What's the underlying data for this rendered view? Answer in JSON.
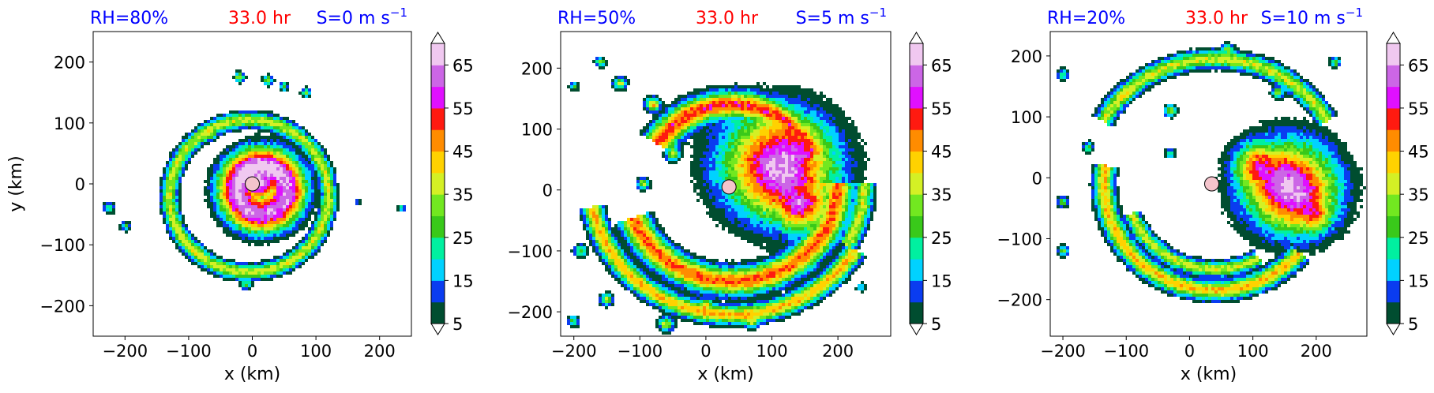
{
  "figure": {
    "panels": [
      {
        "labels": {
          "rh": "RH=80%",
          "time": "33.0 hr",
          "shear": "S=0 m s",
          "shear_sup": "−1"
        }
      },
      {
        "labels": {
          "rh": "RH=50%",
          "time": "33.0 hr",
          "shear": "S=5 m s",
          "shear_sup": "−1"
        }
      },
      {
        "labels": {
          "rh": "RH=20%",
          "time": "33.0 hr",
          "shear": "S=10 m s",
          "shear_sup": "−1"
        }
      }
    ],
    "colors": {
      "rh_label": "#0000ff",
      "time_label": "#ff0000",
      "shear_label": "#0000ff",
      "center_marker": "#f4c4cc"
    }
  },
  "chart_data": [
    {
      "type": "heatmap",
      "title": "RH=80%  33.0 hr  S=0 m s−1",
      "xlabel": "x (km)",
      "ylabel": "y (km)",
      "xlim": [
        -250,
        250
      ],
      "ylim": [
        -250,
        250
      ],
      "xticks": [
        -200,
        -100,
        0,
        100,
        200
      ],
      "yticks": [
        -200,
        -100,
        0,
        100,
        200
      ],
      "xtick_labels": [
        "−200",
        "−100",
        "0",
        "100",
        "200"
      ],
      "ytick_labels": [
        "−200",
        "−100",
        "0",
        "100",
        "200"
      ],
      "center": [
        0,
        0
      ],
      "features": [
        {
          "kind": "ring",
          "cx": 15,
          "cy": -10,
          "r": 90,
          "peak": 50
        },
        {
          "kind": "core",
          "cx": 10,
          "cy": 5,
          "r": 45,
          "peak": 55
        },
        {
          "kind": "band",
          "cx": -5,
          "cy": -20,
          "r": 125,
          "a0": 0,
          "a1": 360,
          "width": 12,
          "peak": 30
        },
        {
          "kind": "cell",
          "cx": -65,
          "cy": 80,
          "r": 9,
          "peak": 28
        },
        {
          "kind": "cell",
          "cx": -20,
          "cy": 175,
          "r": 8,
          "peak": 30
        },
        {
          "kind": "cell",
          "cx": 25,
          "cy": 170,
          "r": 8,
          "peak": 28
        },
        {
          "kind": "cell",
          "cx": 50,
          "cy": 160,
          "r": 7,
          "peak": 25
        },
        {
          "kind": "cell",
          "cx": 85,
          "cy": 150,
          "r": 8,
          "peak": 25
        },
        {
          "kind": "cell",
          "cx": -225,
          "cy": -40,
          "r": 9,
          "peak": 22
        },
        {
          "kind": "cell",
          "cx": -200,
          "cy": -70,
          "r": 8,
          "peak": 20
        },
        {
          "kind": "cell",
          "cx": 165,
          "cy": -30,
          "r": 5,
          "peak": 15
        },
        {
          "kind": "cell",
          "cx": 235,
          "cy": -40,
          "r": 6,
          "peak": 20
        },
        {
          "kind": "cell",
          "cx": -85,
          "cy": -105,
          "r": 8,
          "peak": 22
        },
        {
          "kind": "cell",
          "cx": -10,
          "cy": -165,
          "r": 9,
          "peak": 25
        }
      ]
    },
    {
      "type": "heatmap",
      "title": "RH=50%  33.0 hr  S=5 m s−1",
      "xlabel": "x (km)",
      "ylabel": "",
      "xlim": [
        -220,
        280
      ],
      "ylim": [
        -240,
        260
      ],
      "xticks": [
        -200,
        -100,
        0,
        100,
        200
      ],
      "yticks": [
        -200,
        -100,
        0,
        100,
        200
      ],
      "xtick_labels": [
        "−200",
        "−100",
        "0",
        "100",
        "200"
      ],
      "ytick_labels": [
        "−200",
        "−100",
        "0",
        "100",
        "200"
      ],
      "center": [
        35,
        5
      ],
      "features": [
        {
          "kind": "core",
          "cx": 110,
          "cy": 40,
          "r": 105,
          "peak": 52
        },
        {
          "kind": "core",
          "cx": 140,
          "cy": -20,
          "r": 60,
          "peak": 50
        },
        {
          "kind": "band",
          "cx": 40,
          "cy": 10,
          "r": 160,
          "a0": 200,
          "a1": 360,
          "width": 22,
          "peak": 40
        },
        {
          "kind": "band",
          "cx": 40,
          "cy": 10,
          "r": 130,
          "a0": 20,
          "a1": 150,
          "width": 22,
          "peak": 42
        },
        {
          "kind": "band",
          "cx": 40,
          "cy": 10,
          "r": 215,
          "a0": 190,
          "a1": 330,
          "width": 15,
          "peak": 35
        },
        {
          "kind": "band",
          "cx": 40,
          "cy": 10,
          "r": 200,
          "a0": 330,
          "a1": 360,
          "width": 14,
          "peak": 30
        },
        {
          "kind": "cell",
          "cx": -80,
          "cy": 140,
          "r": 12,
          "peak": 35
        },
        {
          "kind": "cell",
          "cx": -50,
          "cy": 60,
          "r": 12,
          "peak": 30
        },
        {
          "kind": "cell",
          "cx": -95,
          "cy": 10,
          "r": 10,
          "peak": 28
        },
        {
          "kind": "cell",
          "cx": -130,
          "cy": 175,
          "r": 10,
          "peak": 30
        },
        {
          "kind": "cell",
          "cx": -160,
          "cy": 210,
          "r": 8,
          "peak": 25
        },
        {
          "kind": "cell",
          "cx": -200,
          "cy": 170,
          "r": 7,
          "peak": 20
        },
        {
          "kind": "cell",
          "cx": -190,
          "cy": -100,
          "r": 10,
          "peak": 25
        },
        {
          "kind": "cell",
          "cx": -150,
          "cy": -180,
          "r": 10,
          "peak": 28
        },
        {
          "kind": "cell",
          "cx": -60,
          "cy": -220,
          "r": 12,
          "peak": 30
        },
        {
          "kind": "cell",
          "cx": 0,
          "cy": -190,
          "r": 12,
          "peak": 35
        },
        {
          "kind": "cell",
          "cx": 70,
          "cy": -215,
          "r": 12,
          "peak": 32
        },
        {
          "kind": "cell",
          "cx": -200,
          "cy": -215,
          "r": 9,
          "peak": 22
        },
        {
          "kind": "cell",
          "cx": 235,
          "cy": -160,
          "r": 7,
          "peak": 18
        }
      ]
    },
    {
      "type": "heatmap",
      "title": "RH=20%  33.0 hr  S=10 m s−1",
      "xlabel": "x (km)",
      "ylabel": "",
      "xlim": [
        -220,
        280
      ],
      "ylim": [
        -260,
        240
      ],
      "xticks": [
        -200,
        -100,
        0,
        100,
        200
      ],
      "yticks": [
        -200,
        -100,
        0,
        100,
        200
      ],
      "xtick_labels": [
        "−200",
        "−100",
        "0",
        "100",
        "200"
      ],
      "ytick_labels": [
        "−200",
        "−100",
        "0",
        "100",
        "200"
      ],
      "center": [
        35,
        -10
      ],
      "features": [
        {
          "kind": "core",
          "cx": 160,
          "cy": -15,
          "r": 90,
          "peak": 50
        },
        {
          "kind": "core",
          "cx": 115,
          "cy": 15,
          "r": 55,
          "peak": 48
        },
        {
          "kind": "core",
          "cx": 190,
          "cy": -55,
          "r": 50,
          "peak": 45
        },
        {
          "kind": "band",
          "cx": 40,
          "cy": -10,
          "r": 175,
          "a0": 170,
          "a1": 320,
          "width": 15,
          "peak": 35
        },
        {
          "kind": "band",
          "cx": 40,
          "cy": -10,
          "r": 140,
          "a0": 200,
          "a1": 300,
          "width": 12,
          "peak": 30
        },
        {
          "kind": "band",
          "cx": 40,
          "cy": -10,
          "r": 205,
          "a0": 30,
          "a1": 150,
          "width": 14,
          "peak": 30
        },
        {
          "kind": "cell",
          "cx": -100,
          "cy": 140,
          "r": 10,
          "peak": 25
        },
        {
          "kind": "cell",
          "cx": -30,
          "cy": 110,
          "r": 10,
          "peak": 28
        },
        {
          "kind": "cell",
          "cx": -160,
          "cy": 50,
          "r": 9,
          "peak": 22
        },
        {
          "kind": "cell",
          "cx": -200,
          "cy": 170,
          "r": 9,
          "peak": 22
        },
        {
          "kind": "cell",
          "cx": -30,
          "cy": 40,
          "r": 8,
          "peak": 20
        },
        {
          "kind": "cell",
          "cx": -200,
          "cy": -40,
          "r": 9,
          "peak": 22
        },
        {
          "kind": "cell",
          "cx": -200,
          "cy": -120,
          "r": 9,
          "peak": 25
        },
        {
          "kind": "cell",
          "cx": 60,
          "cy": 210,
          "r": 10,
          "peak": 28
        },
        {
          "kind": "cell",
          "cx": 140,
          "cy": 140,
          "r": 10,
          "peak": 28
        },
        {
          "kind": "cell",
          "cx": 230,
          "cy": 190,
          "r": 8,
          "peak": 25
        }
      ]
    }
  ],
  "colorbar": {
    "levels": [
      5,
      10,
      15,
      20,
      25,
      30,
      35,
      40,
      45,
      50,
      55,
      60,
      65,
      70
    ],
    "tick_labels": [
      "5",
      "15",
      "25",
      "35",
      "45",
      "55",
      "65"
    ],
    "extend": "both",
    "colors": [
      "#004d30",
      "#0a3cf0",
      "#00d2ff",
      "#00f0a0",
      "#39c91a",
      "#72e820",
      "#d4f025",
      "#ffd200",
      "#ff8c00",
      "#ff1a10",
      "#e010ff",
      "#cc66e6",
      "#f0c8f0"
    ],
    "under_color": "#ffffff",
    "over_color": "#ffffff"
  }
}
